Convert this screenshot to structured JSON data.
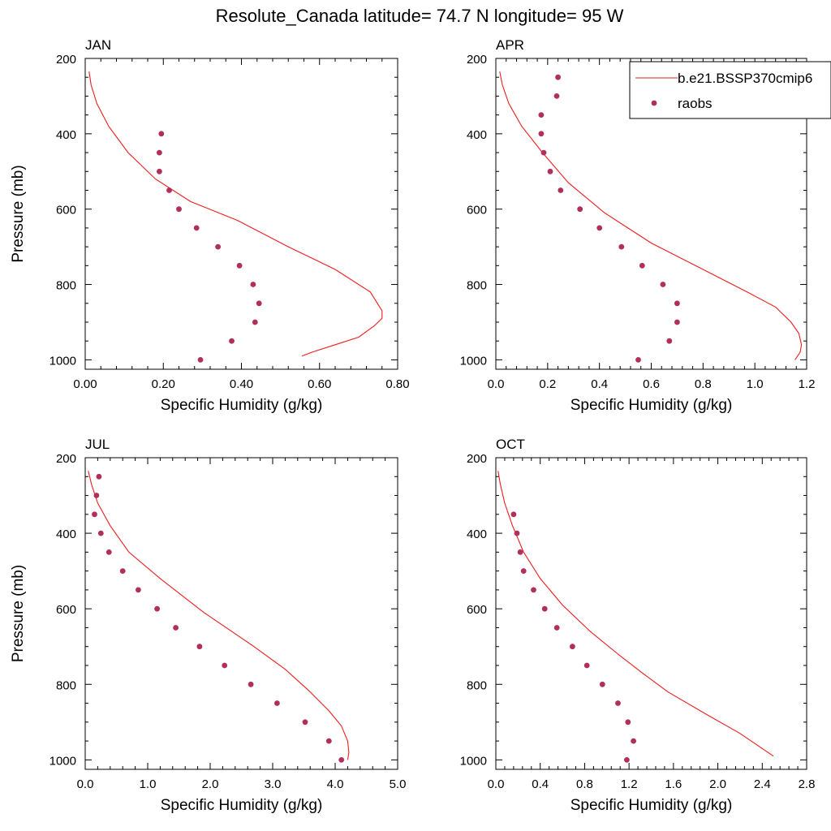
{
  "figure": {
    "title": "Resolute_Canada  latitude= 74.7 N longitude= 95 W",
    "legend": {
      "model_label": "b.e21.BSSP370cmip6",
      "obs_label": "raobs",
      "placement": "top-right of APR panel",
      "colors": {
        "model": "#ee1c1c",
        "obs": "#b0305a"
      }
    }
  },
  "chart_data": [
    {
      "type": "line",
      "title": "JAN",
      "xlabel": "Specific Humidity (g/kg)",
      "ylabel": "Pressure (mb)",
      "xlim": [
        0,
        0.8
      ],
      "ylim": [
        1025,
        200
      ],
      "y_reversed": true,
      "xticks": [
        0,
        0.2,
        0.4,
        0.6,
        0.8
      ],
      "xtick_labels": [
        "0.00",
        "0.20",
        "0.40",
        "0.60",
        "0.80"
      ],
      "yticks": [
        200,
        400,
        600,
        800,
        1000
      ],
      "ytick_labels": [
        "200",
        "400",
        "600",
        "800",
        "1000"
      ],
      "series": [
        {
          "name": "b.e21.BSSP370cmip6",
          "kind": "line",
          "x": [
            0.01,
            0.015,
            0.03,
            0.06,
            0.11,
            0.18,
            0.27,
            0.39,
            0.52,
            0.64,
            0.73,
            0.76,
            0.76,
            0.74,
            0.7,
            0.64,
            0.58,
            0.555
          ],
          "y": [
            235,
            270,
            320,
            380,
            450,
            520,
            580,
            630,
            700,
            760,
            820,
            870,
            890,
            910,
            940,
            960,
            980,
            990
          ]
        },
        {
          "name": "raobs",
          "kind": "scatter",
          "x": [
            0.195,
            0.19,
            0.19,
            0.215,
            0.24,
            0.285,
            0.34,
            0.395,
            0.43,
            0.445,
            0.435,
            0.375,
            0.295
          ],
          "y": [
            400,
            450,
            500,
            550,
            600,
            650,
            700,
            750,
            800,
            850,
            900,
            950,
            1000
          ]
        }
      ]
    },
    {
      "type": "line",
      "title": "APR",
      "xlabel": "Specific Humidity (g/kg)",
      "ylabel": "",
      "xlim": [
        0,
        1.2
      ],
      "ylim": [
        1025,
        200
      ],
      "y_reversed": true,
      "xticks": [
        0,
        0.2,
        0.4,
        0.6,
        0.8,
        1.0,
        1.2
      ],
      "xtick_labels": [
        "0.0",
        "0.2",
        "0.4",
        "0.6",
        "0.8",
        "1.0",
        "1.2"
      ],
      "yticks": [
        200,
        400,
        600,
        800,
        1000
      ],
      "ytick_labels": [
        "200",
        "400",
        "600",
        "800",
        "1000"
      ],
      "series": [
        {
          "name": "b.e21.BSSP370cmip6",
          "kind": "line",
          "x": [
            0.015,
            0.025,
            0.05,
            0.1,
            0.18,
            0.28,
            0.42,
            0.6,
            0.8,
            0.97,
            1.08,
            1.14,
            1.17,
            1.18,
            1.175,
            1.155
          ],
          "y": [
            235,
            270,
            320,
            380,
            450,
            530,
            610,
            690,
            760,
            820,
            860,
            900,
            930,
            960,
            980,
            1000
          ]
        },
        {
          "name": "raobs",
          "kind": "scatter",
          "x": [
            0.24,
            0.235,
            0.175,
            0.175,
            0.185,
            0.21,
            0.25,
            0.325,
            0.4,
            0.485,
            0.565,
            0.645,
            0.7,
            0.7,
            0.67,
            0.55
          ],
          "y": [
            250,
            300,
            350,
            400,
            450,
            500,
            550,
            600,
            650,
            700,
            750,
            800,
            850,
            900,
            950,
            1000
          ]
        }
      ]
    },
    {
      "type": "line",
      "title": "JUL",
      "xlabel": "Specific Humidity (g/kg)",
      "ylabel": "Pressure (mb)",
      "xlim": [
        0,
        5
      ],
      "ylim": [
        1025,
        200
      ],
      "y_reversed": true,
      "xticks": [
        0,
        1,
        2,
        3,
        4,
        5
      ],
      "xtick_labels": [
        "0.0",
        "1.0",
        "2.0",
        "3.0",
        "4.0",
        "5.0"
      ],
      "yticks": [
        200,
        400,
        600,
        800,
        1000
      ],
      "ytick_labels": [
        "200",
        "400",
        "600",
        "800",
        "1000"
      ],
      "series": [
        {
          "name": "b.e21.BSSP370cmip6",
          "kind": "line",
          "x": [
            0.05,
            0.1,
            0.2,
            0.4,
            0.7,
            1.2,
            1.9,
            2.7,
            3.2,
            3.6,
            3.9,
            4.1,
            4.2,
            4.22,
            4.2
          ],
          "y": [
            235,
            270,
            320,
            380,
            450,
            520,
            610,
            700,
            760,
            820,
            870,
            910,
            950,
            980,
            1000
          ]
        },
        {
          "name": "raobs",
          "kind": "scatter",
          "x": [
            0.22,
            0.18,
            0.15,
            0.25,
            0.38,
            0.6,
            0.85,
            1.15,
            1.45,
            1.83,
            2.23,
            2.65,
            3.07,
            3.52,
            3.9,
            4.1
          ],
          "y": [
            250,
            300,
            350,
            400,
            450,
            500,
            550,
            600,
            650,
            700,
            750,
            800,
            850,
            900,
            950,
            1000
          ]
        }
      ]
    },
    {
      "type": "line",
      "title": "OCT",
      "xlabel": "Specific Humidity (g/kg)",
      "ylabel": "",
      "xlim": [
        0,
        2.8
      ],
      "ylim": [
        1025,
        200
      ],
      "y_reversed": true,
      "xticks": [
        0,
        0.4,
        0.8,
        1.2,
        1.6,
        2.0,
        2.4,
        2.8
      ],
      "xtick_labels": [
        "0.0",
        "0.4",
        "0.8",
        "1.2",
        "1.6",
        "2.0",
        "2.4",
        "2.8"
      ],
      "yticks": [
        200,
        400,
        600,
        800,
        1000
      ],
      "ytick_labels": [
        "200",
        "400",
        "600",
        "800",
        "1000"
      ],
      "series": [
        {
          "name": "b.e21.BSSP370cmip6",
          "kind": "line",
          "x": [
            0.02,
            0.04,
            0.08,
            0.15,
            0.25,
            0.4,
            0.6,
            0.85,
            1.1,
            1.32,
            1.55,
            1.9,
            2.2,
            2.5
          ],
          "y": [
            235,
            270,
            320,
            380,
            450,
            520,
            590,
            660,
            720,
            770,
            820,
            880,
            930,
            990
          ]
        },
        {
          "name": "raobs",
          "kind": "scatter",
          "x": [
            0.16,
            0.19,
            0.22,
            0.25,
            0.34,
            0.44,
            0.55,
            0.69,
            0.82,
            0.96,
            1.1,
            1.19,
            1.24,
            1.18
          ],
          "y": [
            350,
            400,
            450,
            500,
            550,
            600,
            650,
            700,
            750,
            800,
            850,
            900,
            950,
            1000
          ]
        }
      ]
    }
  ]
}
